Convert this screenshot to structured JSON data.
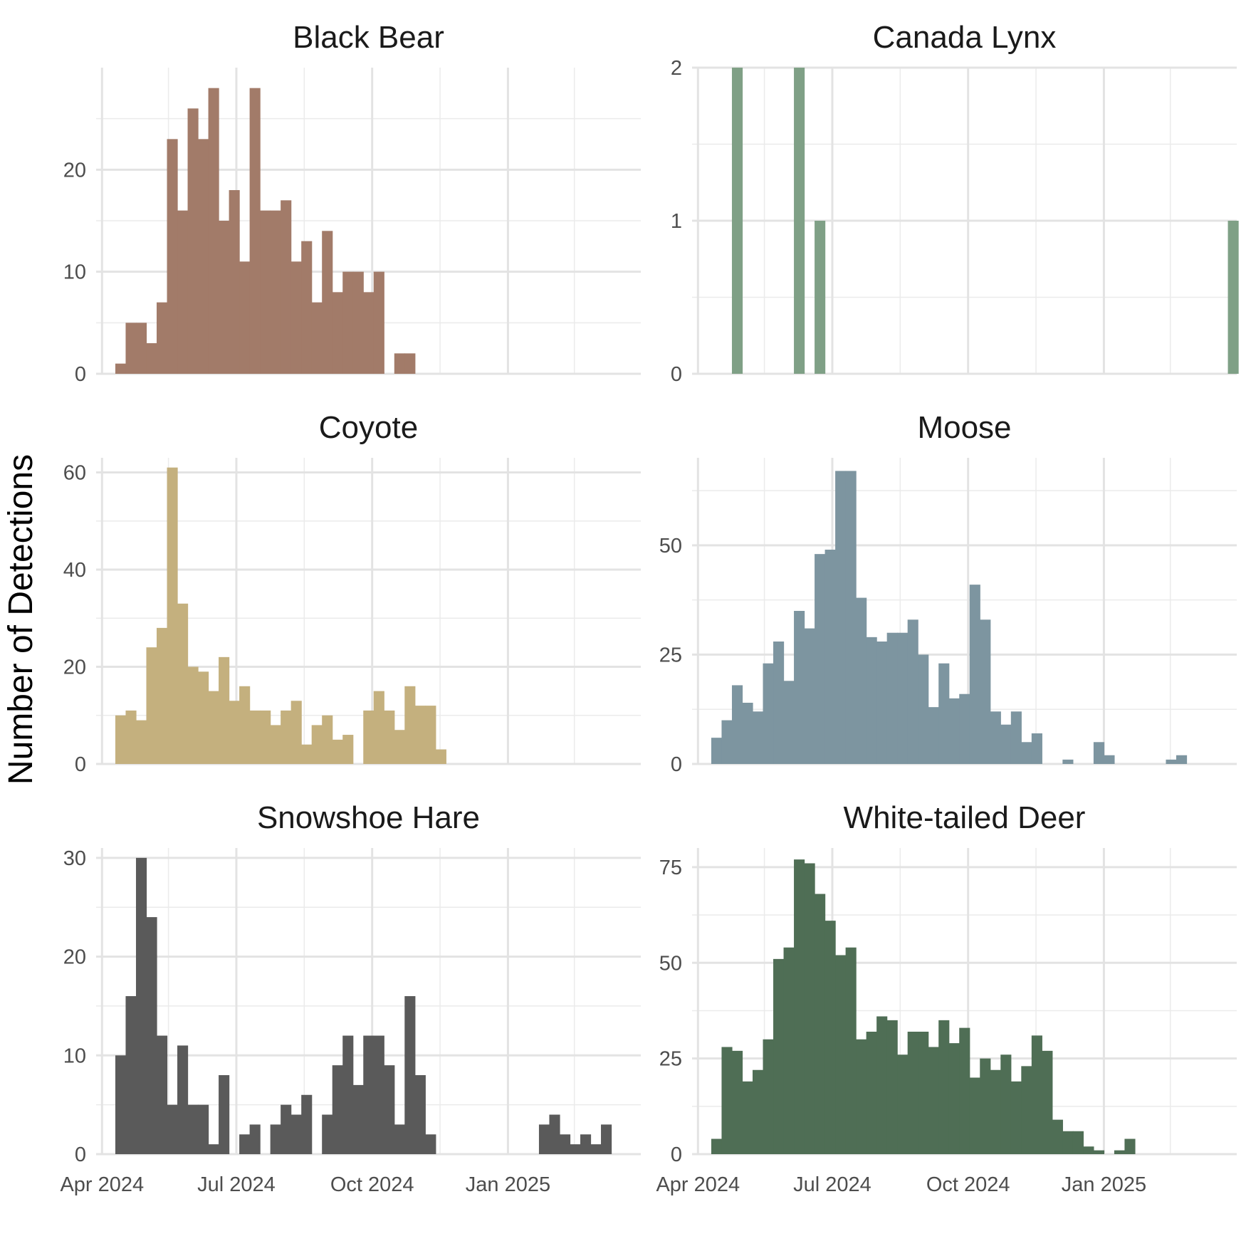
{
  "chart_data": {
    "type": "histogram",
    "ylabel": "Number of Detections",
    "xlabel": "",
    "x_axis": {
      "type": "date",
      "range": [
        "2024-03-28",
        "2025-04-01"
      ],
      "ticks": [
        {
          "date": "2024-04-01",
          "label": "Apr 2024"
        },
        {
          "date": "2024-07-01",
          "label": "Jul 2024"
        },
        {
          "date": "2024-10-01",
          "label": "Oct 2024"
        },
        {
          "date": "2025-01-01",
          "label": "Jan 2025"
        }
      ],
      "minor_gridlines": [
        "2024-05-16",
        "2024-08-16",
        "2024-11-16",
        "2025-02-15"
      ]
    },
    "bin_width_days": 7,
    "first_bin_start": "2024-04-10",
    "grid": true,
    "legend": "none",
    "panels": [
      {
        "name": "Black Bear",
        "color": "#a27b69",
        "ylim": [
          0,
          30
        ],
        "y_ticks": [
          0,
          10,
          20
        ],
        "values": [
          1,
          5,
          5,
          3,
          7,
          23,
          16,
          26,
          23,
          28,
          15,
          18,
          11,
          28,
          16,
          16,
          17,
          11,
          13,
          7,
          14,
          8,
          10,
          10,
          8,
          10,
          0,
          2,
          2
        ]
      },
      {
        "name": "Canada Lynx",
        "color": "#7fa086",
        "ylim": [
          0,
          2
        ],
        "y_ticks": [
          0,
          1,
          2
        ],
        "values": [
          0,
          0,
          2,
          0,
          0,
          0,
          0,
          0,
          2,
          0,
          1,
          0,
          0,
          0,
          0,
          0,
          0,
          0,
          0,
          0,
          0,
          0,
          0,
          0,
          0,
          0,
          0,
          0,
          0,
          0,
          0,
          0,
          0,
          0,
          0,
          0,
          0,
          0,
          0,
          0,
          0,
          0,
          0,
          0,
          0,
          0,
          0,
          0,
          0,
          0,
          1
        ]
      },
      {
        "name": "Coyote",
        "color": "#c4b07e",
        "ylim": [
          0,
          63
        ],
        "y_ticks": [
          0,
          20,
          40,
          60
        ],
        "values": [
          10,
          11,
          9,
          24,
          28,
          61,
          33,
          20,
          19,
          15,
          22,
          13,
          16,
          11,
          11,
          8,
          11,
          13,
          4,
          8,
          10,
          5,
          6,
          0,
          11,
          15,
          11,
          7,
          16,
          12,
          12,
          3
        ]
      },
      {
        "name": "Moose",
        "color": "#7d95a0",
        "ylim": [
          0,
          70
        ],
        "y_ticks": [
          0,
          25,
          50
        ],
        "values": [
          6,
          10,
          18,
          14,
          12,
          23,
          28,
          19,
          35,
          31,
          48,
          49,
          67,
          67,
          38,
          29,
          28,
          30,
          30,
          33,
          25,
          13,
          23,
          15,
          16,
          41,
          33,
          12,
          9,
          12,
          5,
          7,
          0,
          0,
          1,
          0,
          0,
          5,
          2,
          0,
          0,
          0,
          0,
          0,
          1,
          2
        ]
      },
      {
        "name": "Snowshoe Hare",
        "color": "#5a5a5a",
        "ylim": [
          0,
          31
        ],
        "y_ticks": [
          0,
          10,
          20,
          30
        ],
        "values": [
          10,
          16,
          30,
          24,
          12,
          5,
          11,
          5,
          5,
          1,
          8,
          0,
          2,
          3,
          0,
          3,
          5,
          4,
          6,
          0,
          4,
          9,
          12,
          7,
          12,
          12,
          9,
          3,
          16,
          8,
          2,
          0,
          0,
          0,
          0,
          0,
          0,
          0,
          0,
          0,
          0,
          3,
          4,
          2,
          1,
          2,
          1,
          3
        ]
      },
      {
        "name": "White-tailed Deer",
        "color": "#4f6e55",
        "ylim": [
          0,
          80
        ],
        "y_ticks": [
          0,
          25,
          50,
          75
        ],
        "values": [
          4,
          28,
          27,
          19,
          22,
          30,
          51,
          54,
          77,
          76,
          68,
          61,
          52,
          54,
          30,
          32,
          36,
          35,
          26,
          32,
          32,
          28,
          35,
          29,
          33,
          20,
          25,
          22,
          26,
          19,
          23,
          31,
          27,
          9,
          6,
          6,
          2,
          1,
          0,
          1,
          4
        ]
      }
    ]
  }
}
